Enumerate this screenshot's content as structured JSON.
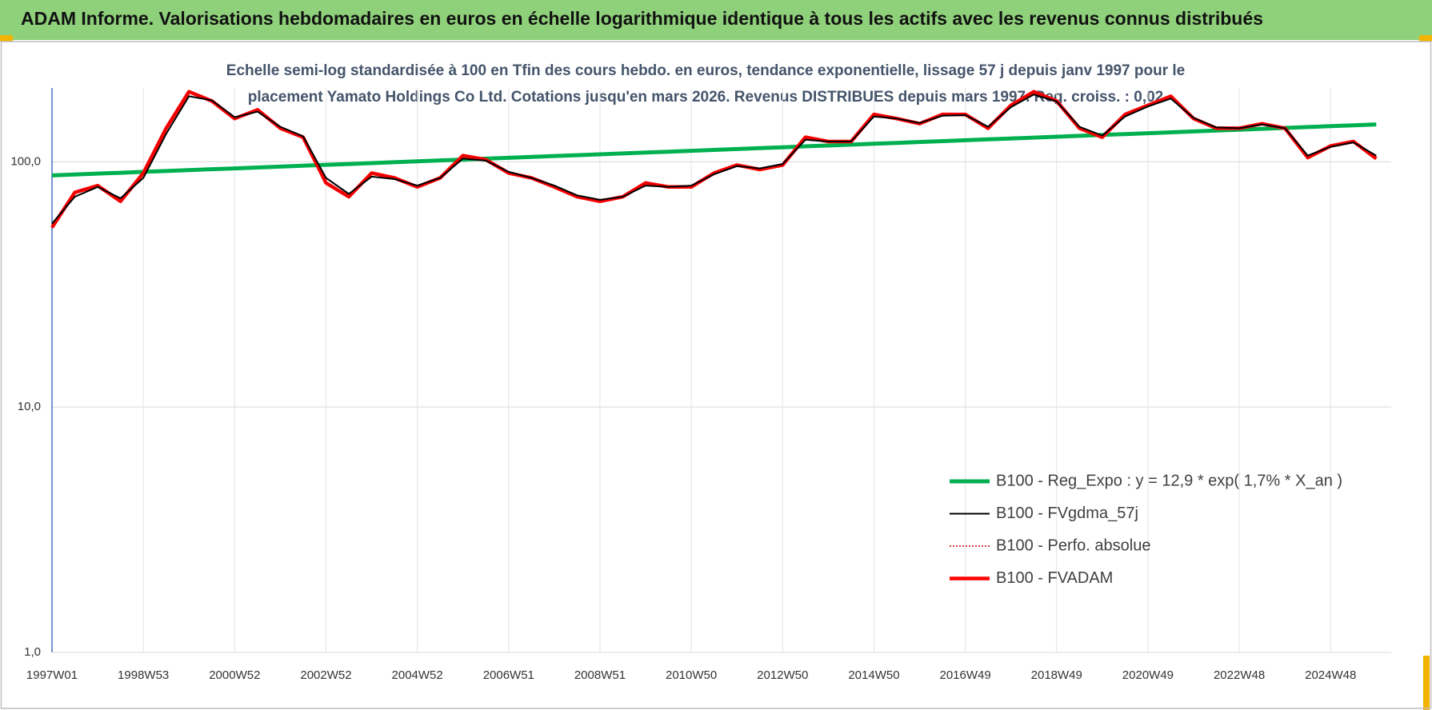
{
  "chart_data": {
    "type": "line",
    "title": "ADAM Informe. Valorisations hebdomadaires en euros en échelle logarithmique identique à tous les actifs avec les revenus connus distribués",
    "subtitle": [
      "Echelle semi-log standardisée à 100 en Tfin des cours hebdo. en euros, tendance exponentielle, lissage 57 j depuis janv 1997 pour le",
      "placement Yamato Holdings Co Ltd. Cotations jusqu'en mars 2026. Revenus DISTRIBUES depuis mars 1997. Reg. croiss. : 0,02"
    ],
    "categories": [
      "1997W01",
      null,
      null,
      null,
      "1998W53",
      null,
      null,
      null,
      "2000W52",
      null,
      null,
      null,
      "2002W52",
      null,
      null,
      null,
      "2004W52",
      null,
      null,
      null,
      "2006W51",
      null,
      null,
      null,
      "2008W51",
      null,
      null,
      null,
      "2010W50",
      null,
      null,
      null,
      "2012W50",
      null,
      null,
      null,
      "2014W50",
      null,
      null,
      null,
      "2016W49",
      null,
      null,
      null,
      "2018W49",
      null,
      null,
      null,
      "2020W49",
      null,
      null,
      null,
      "2022W48",
      null,
      null,
      null,
      "2024W48",
      null,
      null
    ],
    "series": [
      {
        "name": "B100 - Reg_Expo : y = 12,9 * exp( 1,7% *  X_an )",
        "color": "#00b050",
        "width": 5,
        "dash": false,
        "values": [
          88.0,
          88.7,
          89.5,
          90.2,
          91.0,
          91.7,
          92.5,
          93.3,
          94.0,
          94.8,
          95.6,
          96.4,
          97.2,
          98.0,
          98.8,
          99.6,
          100.5,
          101.3,
          102.1,
          103.0,
          103.8,
          104.7,
          105.6,
          106.4,
          107.3,
          108.2,
          109.1,
          110.0,
          110.9,
          111.8,
          112.7,
          113.7,
          114.6,
          115.6,
          116.5,
          117.5,
          118.5,
          119.4,
          120.4,
          121.4,
          122.4,
          123.4,
          124.5,
          125.5,
          126.5,
          127.6,
          128.7,
          129.7,
          130.8,
          131.9,
          133.0,
          134.1,
          135.2,
          136.3,
          137.4,
          138.6,
          139.7,
          140.9,
          142.0
        ]
      },
      {
        "name": "B100 - FVgdma_57j",
        "color": "#000000",
        "width": 2,
        "dash": false,
        "values": [
          56,
          72,
          79,
          71,
          86,
          130,
          185,
          178,
          152,
          160,
          139,
          127,
          86,
          74,
          87,
          85,
          80,
          86,
          103,
          101,
          91,
          86,
          80,
          73,
          70,
          72,
          80,
          79,
          80,
          89,
          96,
          94,
          98,
          123,
          121,
          121,
          153,
          150,
          144,
          154,
          155,
          139,
          167,
          188,
          176,
          139,
          128,
          153,
          168,
          181,
          151,
          138,
          137,
          142,
          137,
          106,
          115,
          120,
          106
        ]
      },
      {
        "name": "B100 - Perfo. absolue",
        "color": "#c00000",
        "width": 1.5,
        "dash": true,
        "values": [
          54,
          75,
          80,
          69,
          90,
          137,
          193,
          177,
          150,
          163,
          137,
          126,
          82,
          72,
          90,
          86,
          79,
          86,
          106,
          102,
          90,
          86,
          79,
          72,
          69,
          72,
          82,
          79,
          79,
          90,
          97,
          93,
          97,
          126,
          121,
          121,
          156,
          150,
          143,
          156,
          156,
          137,
          170,
          193,
          177,
          137,
          126,
          156,
          170,
          185,
          150,
          137,
          137,
          143,
          137,
          104,
          116,
          121,
          103
        ]
      },
      {
        "name": "B100 - FVADAM",
        "color": "#ff0000",
        "width": 4.5,
        "dash": false,
        "values": [
          54,
          75,
          80,
          69,
          90,
          137,
          193,
          177,
          150,
          163,
          137,
          126,
          82,
          72,
          90,
          86,
          79,
          86,
          106,
          102,
          90,
          86,
          79,
          72,
          69,
          72,
          82,
          79,
          79,
          90,
          97,
          93,
          97,
          126,
          121,
          121,
          156,
          150,
          143,
          156,
          156,
          137,
          170,
          193,
          177,
          137,
          126,
          156,
          170,
          185,
          150,
          137,
          137,
          143,
          137,
          104,
          116,
          121,
          103
        ]
      }
    ],
    "log_scale": true,
    "ylim": [
      1,
      200
    ],
    "yticks": [
      {
        "value": 1,
        "label": "1,0"
      },
      {
        "value": 10,
        "label": "10,0"
      },
      {
        "value": 100,
        "label": "100,0"
      }
    ],
    "grid": true,
    "legend": "lower right"
  }
}
